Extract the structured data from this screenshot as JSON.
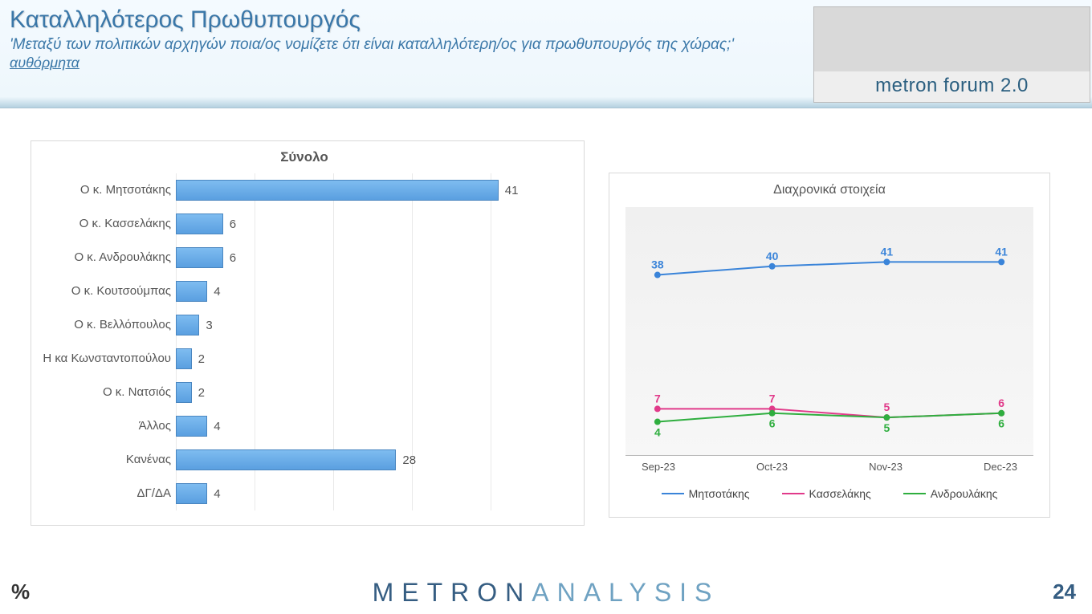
{
  "header": {
    "title": "Καταλληλότερος Πρωθυπουργός",
    "subtitle": "'Μεταξύ των πολιτικών αρχηγών ποια/ος νομίζετε ότι είναι καταλληλότερη/ος για πρωθυπουργός της χώρας;'",
    "spontaneous": "αυθόρμητα",
    "logo_text": "metron forum 2.0"
  },
  "bar_chart": {
    "type": "bar",
    "title": "Σύνολο",
    "xlim": [
      0,
      50
    ],
    "grid_step": 10,
    "bar_color_top": "#7ebcf0",
    "bar_color_bottom": "#5a9fe0",
    "bar_border": "#4a86c0",
    "grid_color": "#e9e9e9",
    "label_fontsize": 15,
    "value_fontsize": 15,
    "rows": [
      {
        "label": "Ο κ. Μητσοτάκης",
        "value": 41
      },
      {
        "label": "Ο κ. Κασσελάκης",
        "value": 6
      },
      {
        "label": "Ο κ. Ανδρουλάκης",
        "value": 6
      },
      {
        "label": "Ο κ. Κουτσούμπας",
        "value": 4
      },
      {
        "label": "Ο κ. Βελλόπουλος",
        "value": 3
      },
      {
        "label": "Η κα Κωνσταντοπούλου",
        "value": 2
      },
      {
        "label": "Ο κ. Νατσιός",
        "value": 2
      },
      {
        "label": "Άλλος",
        "value": 4
      },
      {
        "label": "Κανένας",
        "value": 28
      },
      {
        "label": "ΔΓ/ΔΑ",
        "value": 4
      }
    ]
  },
  "line_chart": {
    "type": "line",
    "title": "Διαχρονικά στοιχεία",
    "ylim": [
      0,
      50
    ],
    "x_categories": [
      "Sep-23",
      "Oct-23",
      "Nov-23",
      "Dec-23"
    ],
    "plot_bg": "#f3f3f3",
    "label_fontsize": 13,
    "value_fontsize": 14,
    "line_width": 2,
    "marker_size": 4,
    "series": [
      {
        "name": "Μητσοτάκης",
        "color": "#3a84d9",
        "values": [
          38,
          40,
          41,
          41
        ]
      },
      {
        "name": "Κασσελάκης",
        "color": "#e13a8a",
        "values": [
          7,
          7,
          5,
          6
        ]
      },
      {
        "name": "Ανδρουλάκης",
        "color": "#2fae3f",
        "values": [
          4,
          6,
          5,
          6
        ]
      }
    ]
  },
  "footer": {
    "left": "%",
    "logo_a": "METRON",
    "logo_b": "ANALYSIS",
    "page": "24"
  }
}
